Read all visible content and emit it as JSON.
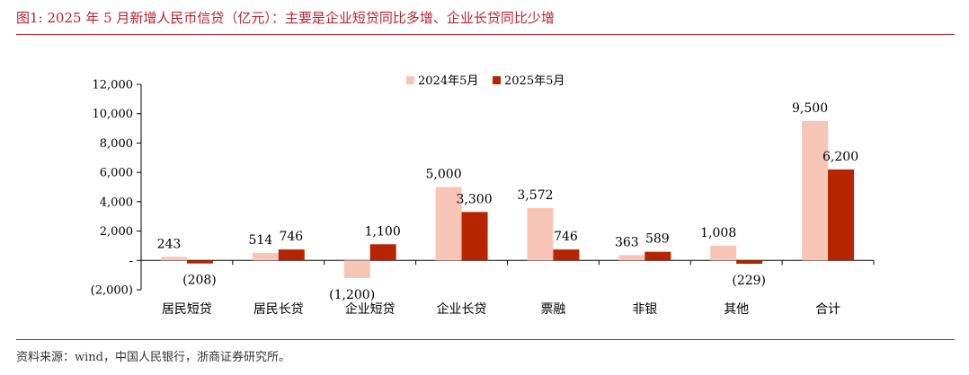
{
  "figure": {
    "title": "图1:   2025 年 5 月新增人民币信贷（亿元）：主要是企业短贷同比多增、企业长贷同比少增",
    "source": "资料来源：wind，中国人民银行，浙商证券研究所。"
  },
  "chart_data": {
    "type": "bar",
    "categories": [
      "居民短贷",
      "居民长贷",
      "企业短贷",
      "企业长贷",
      "票融",
      "非银",
      "其他",
      "合计"
    ],
    "series": [
      {
        "name": "2024年5月",
        "color": "#f8c6b6",
        "values": [
          243,
          514,
          -1200,
          5000,
          3572,
          363,
          1008,
          9500
        ],
        "labels": [
          "243",
          "514",
          "(1,200)",
          "5,000",
          "3,572",
          "363",
          "1,008",
          "9,500"
        ]
      },
      {
        "name": "2025年5月",
        "color": "#b52500",
        "values": [
          -208,
          746,
          1100,
          3300,
          746,
          589,
          -229,
          6200
        ],
        "labels": [
          "(208)",
          "746",
          "1,100",
          "3,300",
          "746",
          "589",
          "(229)",
          "6,200"
        ]
      }
    ],
    "ylim": [
      -2000,
      12000
    ],
    "yticks": [
      -2000,
      0,
      2000,
      4000,
      6000,
      8000,
      10000,
      12000
    ],
    "ytick_labels": [
      "(2,000)",
      "-",
      "2,000",
      "4,000",
      "6,000",
      "8,000",
      "10,000",
      "12,000"
    ],
    "legend_position": "top-center",
    "grid": false
  }
}
